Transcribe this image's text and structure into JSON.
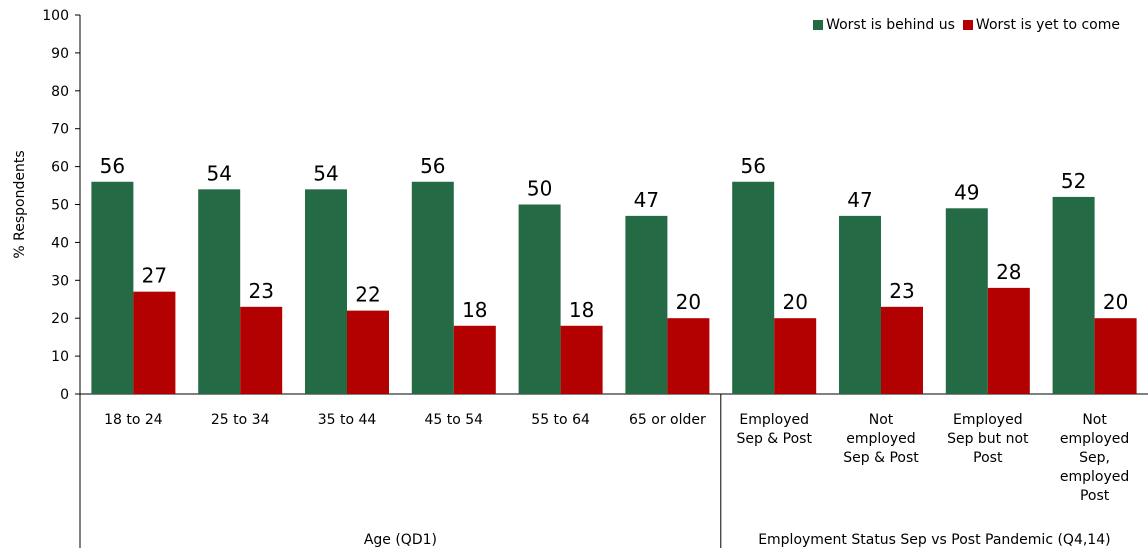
{
  "chart_data": {
    "type": "bar",
    "ylabel": "% Respondents",
    "ylim": [
      0,
      100
    ],
    "yticks": [
      0,
      10,
      20,
      30,
      40,
      50,
      60,
      70,
      80,
      90,
      100
    ],
    "categories": [
      [
        "18 to 24"
      ],
      [
        "25 to 34"
      ],
      [
        "35 to 44"
      ],
      [
        "45 to 54"
      ],
      [
        "55 to 64"
      ],
      [
        "65 or older"
      ],
      [
        "Employed",
        "Sep & Post"
      ],
      [
        "Not",
        "employed",
        "Sep & Post"
      ],
      [
        "Employed",
        "Sep but not",
        "Post"
      ],
      [
        "Not",
        "employed",
        "Sep,",
        "employed",
        "Post"
      ]
    ],
    "groups": [
      {
        "label": "Age (QD1)",
        "categories": 6
      },
      {
        "label": "Employment Status Sep vs Post Pandemic (Q4,14)",
        "categories": 4
      }
    ],
    "series": [
      {
        "name": "Worst is behind us",
        "color": "#246a45",
        "values": [
          56,
          54,
          54,
          56,
          50,
          47,
          56,
          47,
          49,
          52
        ]
      },
      {
        "name": "Worst is yet to come",
        "color": "#b30000",
        "values": [
          27,
          23,
          22,
          18,
          18,
          20,
          20,
          23,
          28,
          20
        ]
      }
    ],
    "legend": "top-right",
    "grid": false
  }
}
